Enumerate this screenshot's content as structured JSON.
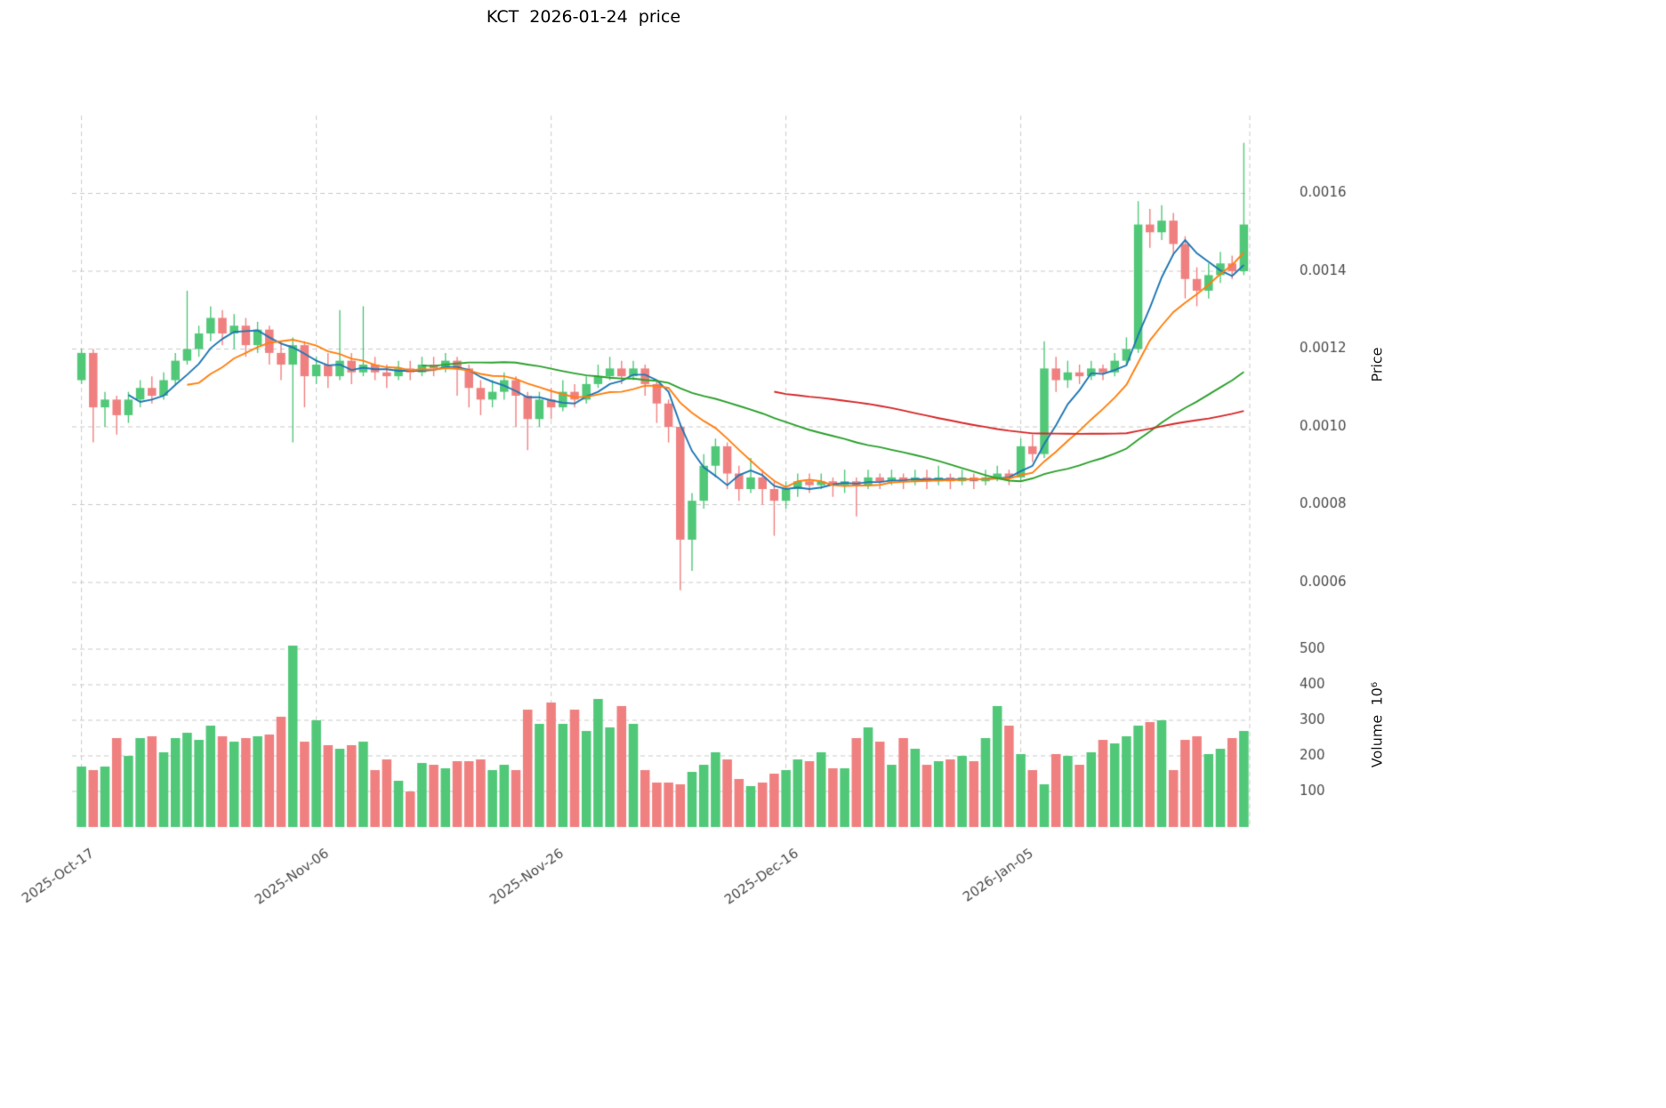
{
  "title": "KCT  2026-01-24  price",
  "colors": {
    "up": "#50c878",
    "down": "#f08080",
    "grid": "#c9c9c9",
    "tick_text": "#4a4a4a",
    "ma_blue": "#1f77b4",
    "ma_orange": "#ff7f0e",
    "ma_green": "#2ca02c",
    "ma_red": "#d62728"
  },
  "price_axis": {
    "label": "Price",
    "ticks": [
      0.0006,
      0.0008,
      0.001,
      0.0012,
      0.0014,
      0.0016
    ]
  },
  "volume_axis": {
    "label": "Volume  10⁶",
    "ticks": [
      100,
      200,
      300,
      400,
      500
    ]
  },
  "x_ticks": [
    {
      "index": 0,
      "label": "2025-Oct-17"
    },
    {
      "index": 20,
      "label": "2025-Nov-06"
    },
    {
      "index": 40,
      "label": "2025-Nov-26"
    },
    {
      "index": 60,
      "label": "2025-Dec-16"
    },
    {
      "index": 80,
      "label": "2026-Jan-05"
    }
  ],
  "chart_data": {
    "type": "candlestick+volume",
    "symbol": "KCT",
    "as_of_date": "2026-01-24",
    "price_ylim": [
      0.00052,
      0.0018
    ],
    "volume_ylim": [
      0,
      575
    ],
    "volume_unit": "10^6",
    "grid": true,
    "moving_averages": [
      {
        "period": 5,
        "color": "#1f77b4"
      },
      {
        "period": 10,
        "color": "#ff7f0e"
      },
      {
        "period": 30,
        "color": "#2ca02c"
      },
      {
        "period": 60,
        "color": "#d62728"
      }
    ],
    "ohlcv_columns": [
      "date",
      "open",
      "high",
      "low",
      "close",
      "volume_millions"
    ],
    "ohlcv": [
      [
        "2025-10-17",
        0.00112,
        0.0012,
        0.00111,
        0.00119,
        170
      ],
      [
        "2025-10-18",
        0.00119,
        0.0012,
        0.00096,
        0.00105,
        160
      ],
      [
        "2025-10-19",
        0.00105,
        0.00109,
        0.001,
        0.00107,
        170
      ],
      [
        "2025-10-20",
        0.00107,
        0.00108,
        0.00098,
        0.00103,
        250
      ],
      [
        "2025-10-21",
        0.00103,
        0.00109,
        0.00101,
        0.00107,
        200
      ],
      [
        "2025-10-22",
        0.00107,
        0.00112,
        0.00105,
        0.0011,
        250
      ],
      [
        "2025-10-23",
        0.0011,
        0.00113,
        0.00106,
        0.00108,
        255
      ],
      [
        "2025-10-24",
        0.00108,
        0.00114,
        0.00107,
        0.00112,
        210
      ],
      [
        "2025-10-25",
        0.00112,
        0.00119,
        0.00111,
        0.00117,
        250
      ],
      [
        "2025-10-26",
        0.00117,
        0.00135,
        0.00116,
        0.0012,
        265
      ],
      [
        "2025-10-27",
        0.0012,
        0.00126,
        0.00118,
        0.00124,
        245
      ],
      [
        "2025-10-28",
        0.00124,
        0.00131,
        0.00122,
        0.00128,
        285
      ],
      [
        "2025-10-29",
        0.00128,
        0.0013,
        0.00121,
        0.00124,
        255
      ],
      [
        "2025-10-30",
        0.00124,
        0.00129,
        0.0012,
        0.00126,
        240
      ],
      [
        "2025-10-31",
        0.00126,
        0.00128,
        0.00118,
        0.00121,
        250
      ],
      [
        "2025-11-01",
        0.00121,
        0.00127,
        0.00119,
        0.00125,
        255
      ],
      [
        "2025-11-02",
        0.00125,
        0.00126,
        0.00116,
        0.00119,
        260
      ],
      [
        "2025-11-03",
        0.00119,
        0.00122,
        0.00112,
        0.00116,
        310
      ],
      [
        "2025-11-04",
        0.00116,
        0.00123,
        0.00096,
        0.00121,
        510
      ],
      [
        "2025-11-05",
        0.00121,
        0.00122,
        0.00105,
        0.00113,
        240
      ],
      [
        "2025-11-06",
        0.00113,
        0.00118,
        0.00111,
        0.00116,
        300
      ],
      [
        "2025-11-07",
        0.00116,
        0.00119,
        0.0011,
        0.00113,
        230
      ],
      [
        "2025-11-08",
        0.00113,
        0.0013,
        0.00112,
        0.00117,
        220
      ],
      [
        "2025-11-09",
        0.00117,
        0.00119,
        0.00111,
        0.00114,
        230
      ],
      [
        "2025-11-10",
        0.00114,
        0.00131,
        0.00113,
        0.00116,
        240
      ],
      [
        "2025-11-11",
        0.00116,
        0.00118,
        0.00112,
        0.00114,
        160
      ],
      [
        "2025-11-12",
        0.00114,
        0.00116,
        0.0011,
        0.00113,
        190
      ],
      [
        "2025-11-13",
        0.00113,
        0.00117,
        0.00112,
        0.00115,
        130
      ],
      [
        "2025-11-14",
        0.00115,
        0.00117,
        0.00112,
        0.00114,
        100
      ],
      [
        "2025-11-15",
        0.00114,
        0.00118,
        0.00113,
        0.00116,
        180
      ],
      [
        "2025-11-16",
        0.00116,
        0.00118,
        0.00113,
        0.00115,
        175
      ],
      [
        "2025-11-17",
        0.00115,
        0.00119,
        0.00114,
        0.00117,
        165
      ],
      [
        "2025-11-18",
        0.00117,
        0.00118,
        0.00108,
        0.00115,
        185
      ],
      [
        "2025-11-19",
        0.00115,
        0.00116,
        0.00105,
        0.0011,
        185
      ],
      [
        "2025-11-20",
        0.0011,
        0.00112,
        0.00103,
        0.00107,
        190
      ],
      [
        "2025-11-21",
        0.00107,
        0.00112,
        0.00105,
        0.00109,
        160
      ],
      [
        "2025-11-22",
        0.00109,
        0.00114,
        0.00107,
        0.00112,
        175
      ],
      [
        "2025-11-23",
        0.00112,
        0.00113,
        0.001,
        0.00108,
        160
      ],
      [
        "2025-11-24",
        0.00108,
        0.00109,
        0.00094,
        0.00102,
        330
      ],
      [
        "2025-11-25",
        0.00102,
        0.00109,
        0.001,
        0.00107,
        290
      ],
      [
        "2025-11-26",
        0.00107,
        0.0011,
        0.00102,
        0.00105,
        350
      ],
      [
        "2025-11-27",
        0.00105,
        0.00112,
        0.00104,
        0.00109,
        290
      ],
      [
        "2025-11-28",
        0.00109,
        0.00111,
        0.00105,
        0.00107,
        330
      ],
      [
        "2025-11-29",
        0.00107,
        0.00113,
        0.00106,
        0.00111,
        270
      ],
      [
        "2025-11-30",
        0.00111,
        0.00116,
        0.0011,
        0.00113,
        360
      ],
      [
        "2025-12-01",
        0.00113,
        0.00118,
        0.00112,
        0.00115,
        280
      ],
      [
        "2025-12-02",
        0.00115,
        0.00117,
        0.00111,
        0.00113,
        340
      ],
      [
        "2025-12-03",
        0.00113,
        0.00117,
        0.00112,
        0.00115,
        290
      ],
      [
        "2025-12-04",
        0.00115,
        0.00116,
        0.00108,
        0.00111,
        160
      ],
      [
        "2025-12-05",
        0.00111,
        0.00112,
        0.00101,
        0.00106,
        125
      ],
      [
        "2025-12-06",
        0.00106,
        0.00107,
        0.00096,
        0.001,
        125
      ],
      [
        "2025-12-07",
        0.001,
        0.00101,
        0.00058,
        0.00071,
        120
      ],
      [
        "2025-12-08",
        0.00071,
        0.00083,
        0.00063,
        0.00081,
        155
      ],
      [
        "2025-12-09",
        0.00081,
        0.00093,
        0.00079,
        0.0009,
        175
      ],
      [
        "2025-12-10",
        0.0009,
        0.00097,
        0.00087,
        0.00095,
        210
      ],
      [
        "2025-12-11",
        0.00095,
        0.00096,
        0.00084,
        0.00088,
        190
      ],
      [
        "2025-12-12",
        0.00088,
        0.0009,
        0.00081,
        0.00084,
        135
      ],
      [
        "2025-12-13",
        0.00084,
        0.00092,
        0.00083,
        0.00087,
        115
      ],
      [
        "2025-12-14",
        0.00087,
        0.00089,
        0.0008,
        0.00084,
        125
      ],
      [
        "2025-12-15",
        0.00084,
        0.00086,
        0.00072,
        0.00081,
        150
      ],
      [
        "2025-12-16",
        0.00081,
        0.00086,
        0.00079,
        0.00084,
        160
      ],
      [
        "2025-12-17",
        0.00084,
        0.00088,
        0.00082,
        0.00086,
        190
      ],
      [
        "2025-12-18",
        0.00086,
        0.00088,
        0.00083,
        0.00085,
        185
      ],
      [
        "2025-12-19",
        0.00085,
        0.00088,
        0.00084,
        0.00086,
        210
      ],
      [
        "2025-12-20",
        0.00086,
        0.00087,
        0.00082,
        0.00085,
        165
      ],
      [
        "2025-12-21",
        0.00085,
        0.00089,
        0.00083,
        0.00086,
        165
      ],
      [
        "2025-12-22",
        0.00086,
        0.00087,
        0.00077,
        0.00085,
        250
      ],
      [
        "2025-12-23",
        0.00085,
        0.00089,
        0.00084,
        0.00087,
        280
      ],
      [
        "2025-12-24",
        0.00087,
        0.00088,
        0.00084,
        0.00086,
        240
      ],
      [
        "2025-12-25",
        0.00086,
        0.00089,
        0.00085,
        0.00087,
        175
      ],
      [
        "2025-12-26",
        0.00087,
        0.00088,
        0.00084,
        0.00086,
        250
      ],
      [
        "2025-12-27",
        0.00086,
        0.00089,
        0.00085,
        0.00087,
        220
      ],
      [
        "2025-12-28",
        0.00087,
        0.00089,
        0.00084,
        0.00086,
        175
      ],
      [
        "2025-12-29",
        0.00086,
        0.0009,
        0.00085,
        0.00087,
        185
      ],
      [
        "2025-12-30",
        0.00087,
        0.00088,
        0.00084,
        0.00086,
        190
      ],
      [
        "2025-12-31",
        0.00086,
        0.00089,
        0.00085,
        0.00087,
        200
      ],
      [
        "2026-01-01",
        0.00087,
        0.00088,
        0.00084,
        0.00086,
        185
      ],
      [
        "2026-01-02",
        0.00086,
        0.00089,
        0.00085,
        0.00087,
        250
      ],
      [
        "2026-01-03",
        0.00087,
        0.0009,
        0.00086,
        0.00088,
        340
      ],
      [
        "2026-01-04",
        0.00088,
        0.00089,
        0.00085,
        0.00087,
        285
      ],
      [
        "2026-01-05",
        0.00087,
        0.00097,
        0.00086,
        0.00095,
        205
      ],
      [
        "2026-01-06",
        0.00095,
        0.00098,
        0.00091,
        0.00093,
        160
      ],
      [
        "2026-01-07",
        0.00093,
        0.00122,
        0.00092,
        0.00115,
        120
      ],
      [
        "2026-01-08",
        0.00115,
        0.00118,
        0.00109,
        0.00112,
        205
      ],
      [
        "2026-01-09",
        0.00112,
        0.00117,
        0.0011,
        0.00114,
        200
      ],
      [
        "2026-01-10",
        0.00114,
        0.00116,
        0.00111,
        0.00113,
        175
      ],
      [
        "2026-01-11",
        0.00113,
        0.00117,
        0.00112,
        0.00115,
        210
      ],
      [
        "2026-01-12",
        0.00115,
        0.00116,
        0.00112,
        0.00114,
        245
      ],
      [
        "2026-01-13",
        0.00114,
        0.00119,
        0.00113,
        0.00117,
        235
      ],
      [
        "2026-01-14",
        0.00117,
        0.00123,
        0.00116,
        0.0012,
        255
      ],
      [
        "2026-01-15",
        0.0012,
        0.00158,
        0.00119,
        0.00152,
        285
      ],
      [
        "2026-01-16",
        0.00152,
        0.00156,
        0.00146,
        0.0015,
        295
      ],
      [
        "2026-01-17",
        0.0015,
        0.00157,
        0.00148,
        0.00153,
        300
      ],
      [
        "2026-01-18",
        0.00153,
        0.00155,
        0.00144,
        0.00147,
        160
      ],
      [
        "2026-01-19",
        0.00147,
        0.00149,
        0.00133,
        0.00138,
        245
      ],
      [
        "2026-01-20",
        0.00138,
        0.00141,
        0.00131,
        0.00135,
        255
      ],
      [
        "2026-01-21",
        0.00135,
        0.00142,
        0.00133,
        0.00139,
        205
      ],
      [
        "2026-01-22",
        0.00139,
        0.00145,
        0.00137,
        0.00142,
        220
      ],
      [
        "2026-01-23",
        0.00142,
        0.00144,
        0.00138,
        0.0014,
        250
      ],
      [
        "2026-01-24",
        0.0014,
        0.00173,
        0.00139,
        0.00152,
        270
      ]
    ]
  }
}
